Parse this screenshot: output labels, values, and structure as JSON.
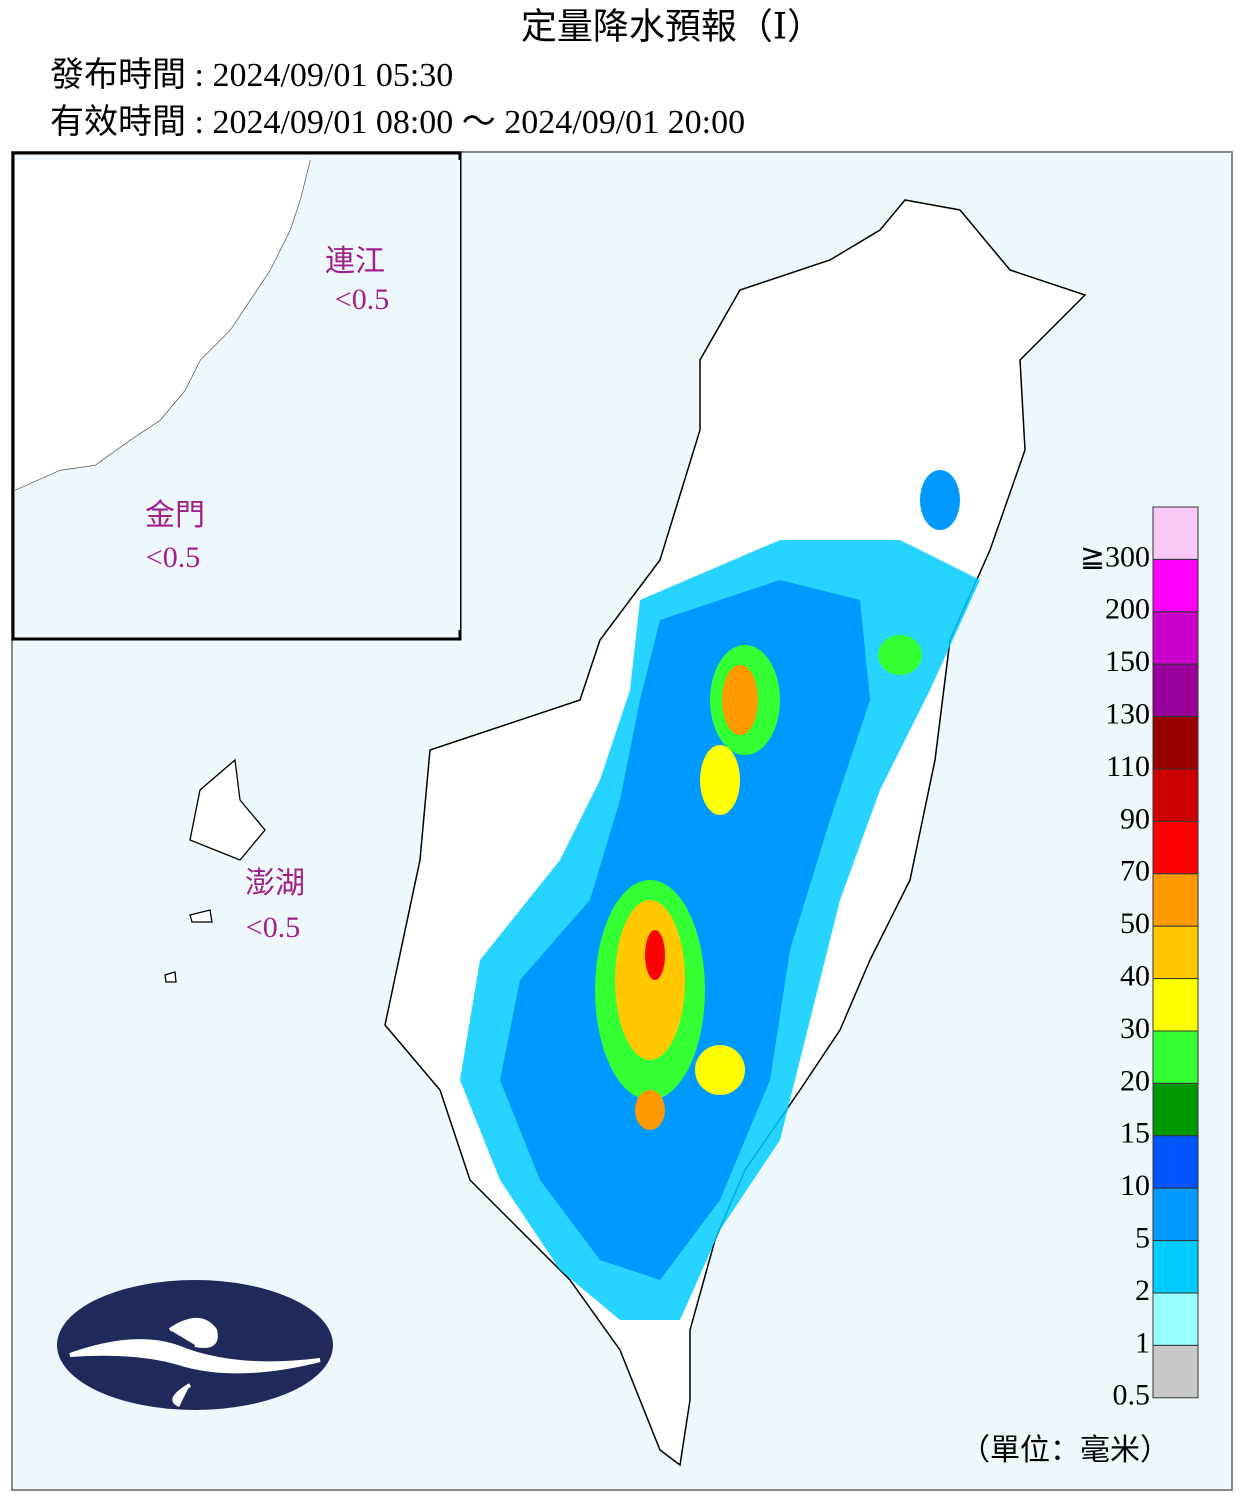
{
  "header": {
    "title": "定量降水預報（Ⅰ）",
    "issue": "發布時間 : 2024/09/01 05:30",
    "valid": "有效時間 : 2024/09/01 08:00 ～ 2024/09/01 20:00"
  },
  "regions": [
    {
      "name": "連江",
      "amount": "<0.5"
    },
    {
      "name": "金門",
      "amount": "<0.5"
    },
    {
      "name": "澎湖",
      "amount": "<0.5"
    }
  ],
  "legend": {
    "labels": [
      "≧300",
      "200",
      "150",
      "130",
      "110",
      "90",
      "70",
      "50",
      "40",
      "30",
      "20",
      "15",
      "10",
      "5",
      "2",
      "1",
      "0.5"
    ],
    "colors": [
      "#f9c8f5",
      "#ff00ff",
      "#cc00cc",
      "#990099",
      "#990000",
      "#cc0000",
      "#ff0000",
      "#ff9900",
      "#ffc800",
      "#ffff00",
      "#33ff33",
      "#009900",
      "#0055ff",
      "#0099ff",
      "#00ccff",
      "#99ffff",
      "#c8c8c8"
    ],
    "unit": "（單位：毫米）"
  }
}
